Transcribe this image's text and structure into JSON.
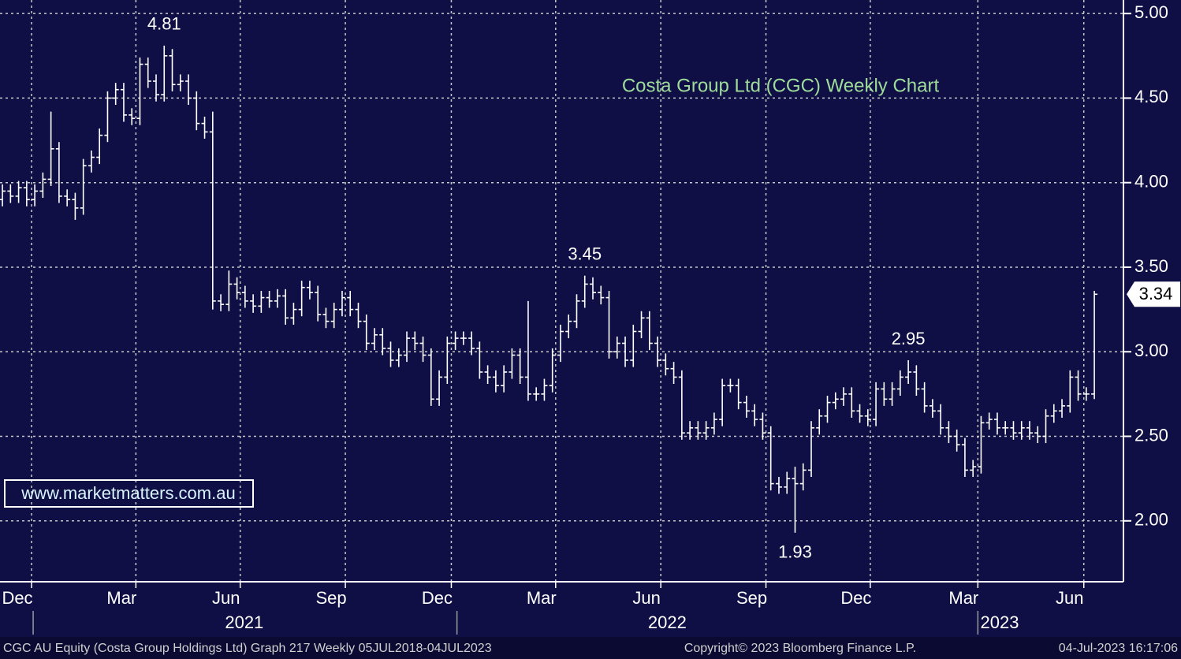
{
  "chart_data": {
    "type": "ohlc",
    "title": "Costa Group Ltd (CGC) Weekly Chart",
    "color": "#ffffff",
    "grid": true,
    "open": [
      3.9,
      3.95,
      3.92,
      3.97,
      3.9,
      3.95,
      4.02,
      4.2,
      3.92,
      3.9,
      3.85,
      4.1,
      4.15,
      4.28,
      4.5,
      4.55,
      4.4,
      4.38,
      4.7,
      4.6,
      4.52,
      4.75,
      4.58,
      4.6,
      4.5,
      4.35,
      4.3,
      3.3,
      3.28,
      3.4,
      3.35,
      3.3,
      3.27,
      3.32,
      3.3,
      3.33,
      3.2,
      3.25,
      3.38,
      3.35,
      3.22,
      3.18,
      3.25,
      3.32,
      3.25,
      3.18,
      3.05,
      3.1,
      3.02,
      2.95,
      2.98,
      3.08,
      3.05,
      2.98,
      2.72,
      2.85,
      3.05,
      3.08,
      3.08,
      3.02,
      2.88,
      2.85,
      2.8,
      2.88,
      2.98,
      2.85,
      2.75,
      2.75,
      2.8,
      2.98,
      3.12,
      3.18,
      3.3,
      3.4,
      3.35,
      3.32,
      3.0,
      3.05,
      2.95,
      3.12,
      3.2,
      3.05,
      2.95,
      2.9,
      2.85,
      2.52,
      2.55,
      2.52,
      2.55,
      2.6,
      2.8,
      2.8,
      2.7,
      2.65,
      2.6,
      2.52,
      2.22,
      2.2,
      2.25,
      2.22,
      2.3,
      2.55,
      2.62,
      2.7,
      2.72,
      2.75,
      2.65,
      2.62,
      2.6,
      2.78,
      2.72,
      2.78,
      2.85,
      2.88,
      2.78,
      2.68,
      2.65,
      2.55,
      2.5,
      2.45,
      2.3,
      2.32,
      2.58,
      2.6,
      2.55,
      2.55,
      2.52,
      2.55,
      2.52,
      2.5,
      2.62,
      2.65,
      2.68,
      2.85,
      2.75,
      2.75
    ],
    "high": [
      3.99,
      3.99,
      4.01,
      4.01,
      3.99,
      4.06,
      4.42,
      4.24,
      3.96,
      3.94,
      4.14,
      4.19,
      4.32,
      4.54,
      4.59,
      4.59,
      4.44,
      4.74,
      4.74,
      4.64,
      4.81,
      4.79,
      4.64,
      4.64,
      4.54,
      4.39,
      4.42,
      3.34,
      3.48,
      3.44,
      3.39,
      3.34,
      3.36,
      3.36,
      3.37,
      3.37,
      3.29,
      3.42,
      3.42,
      3.39,
      3.26,
      3.29,
      3.36,
      3.36,
      3.29,
      3.22,
      3.14,
      3.14,
      3.06,
      3.02,
      3.12,
      3.12,
      3.09,
      3.02,
      2.89,
      3.09,
      3.12,
      3.12,
      3.12,
      3.06,
      2.92,
      2.89,
      2.92,
      3.02,
      3.02,
      3.3,
      2.79,
      2.84,
      3.02,
      3.16,
      3.22,
      3.34,
      3.45,
      3.44,
      3.39,
      3.36,
      3.09,
      3.09,
      3.16,
      3.24,
      3.24,
      3.09,
      2.99,
      2.94,
      2.89,
      2.59,
      2.59,
      2.59,
      2.64,
      2.84,
      2.84,
      2.84,
      2.74,
      2.69,
      2.64,
      2.56,
      2.26,
      2.29,
      2.32,
      2.34,
      2.59,
      2.66,
      2.74,
      2.76,
      2.79,
      2.79,
      2.69,
      2.66,
      2.82,
      2.82,
      2.82,
      2.89,
      2.95,
      2.92,
      2.82,
      2.72,
      2.69,
      2.59,
      2.54,
      2.49,
      2.36,
      2.62,
      2.64,
      2.64,
      2.59,
      2.59,
      2.59,
      2.59,
      2.56,
      2.66,
      2.69,
      2.72,
      2.89,
      2.89,
      2.79,
      3.36
    ],
    "low": [
      3.86,
      3.88,
      3.88,
      3.86,
      3.86,
      3.91,
      3.98,
      3.88,
      3.86,
      3.78,
      3.81,
      4.06,
      4.11,
      4.24,
      4.46,
      4.36,
      4.34,
      4.34,
      4.56,
      4.48,
      4.48,
      4.54,
      4.54,
      4.46,
      4.31,
      4.26,
      3.25,
      3.24,
      3.24,
      3.31,
      3.26,
      3.23,
      3.23,
      3.26,
      3.26,
      3.16,
      3.16,
      3.21,
      3.31,
      3.18,
      3.14,
      3.14,
      3.21,
      3.21,
      3.14,
      3.01,
      3.01,
      2.98,
      2.91,
      2.91,
      2.94,
      3.01,
      2.94,
      2.68,
      2.68,
      2.81,
      3.01,
      3.04,
      2.98,
      2.84,
      2.81,
      2.76,
      2.76,
      2.84,
      2.81,
      2.71,
      2.71,
      2.71,
      2.76,
      2.94,
      3.08,
      3.14,
      3.26,
      3.31,
      3.28,
      2.96,
      2.96,
      2.91,
      2.91,
      3.08,
      3.01,
      2.91,
      2.86,
      2.81,
      2.48,
      2.48,
      2.48,
      2.48,
      2.51,
      2.56,
      2.76,
      2.66,
      2.61,
      2.56,
      2.48,
      2.18,
      2.16,
      2.16,
      1.93,
      2.18,
      2.26,
      2.51,
      2.58,
      2.66,
      2.68,
      2.61,
      2.58,
      2.56,
      2.56,
      2.68,
      2.68,
      2.74,
      2.81,
      2.74,
      2.64,
      2.61,
      2.51,
      2.46,
      2.41,
      2.26,
      2.26,
      2.28,
      2.54,
      2.51,
      2.51,
      2.48,
      2.48,
      2.48,
      2.46,
      2.46,
      2.58,
      2.61,
      2.64,
      2.71,
      2.71,
      2.72
    ],
    "close": [
      3.95,
      3.92,
      3.97,
      3.9,
      3.95,
      4.02,
      4.2,
      3.92,
      3.9,
      3.85,
      4.1,
      4.15,
      4.28,
      4.5,
      4.55,
      4.4,
      4.38,
      4.7,
      4.6,
      4.52,
      4.75,
      4.58,
      4.6,
      4.5,
      4.35,
      4.3,
      3.3,
      3.28,
      3.4,
      3.35,
      3.3,
      3.27,
      3.32,
      3.3,
      3.33,
      3.2,
      3.25,
      3.38,
      3.35,
      3.22,
      3.18,
      3.25,
      3.32,
      3.25,
      3.18,
      3.05,
      3.1,
      3.02,
      2.95,
      2.98,
      3.08,
      3.05,
      2.98,
      2.72,
      2.85,
      3.05,
      3.08,
      3.08,
      3.02,
      2.88,
      2.85,
      2.8,
      2.88,
      2.98,
      2.85,
      2.75,
      2.75,
      2.8,
      2.98,
      3.12,
      3.18,
      3.3,
      3.4,
      3.35,
      3.32,
      3.0,
      3.05,
      2.95,
      3.12,
      3.2,
      3.05,
      2.95,
      2.9,
      2.85,
      2.52,
      2.55,
      2.52,
      2.55,
      2.6,
      2.8,
      2.8,
      2.7,
      2.65,
      2.6,
      2.52,
      2.22,
      2.2,
      2.25,
      2.22,
      2.3,
      2.55,
      2.62,
      2.7,
      2.72,
      2.75,
      2.65,
      2.62,
      2.6,
      2.78,
      2.72,
      2.78,
      2.85,
      2.88,
      2.78,
      2.68,
      2.65,
      2.55,
      2.5,
      2.45,
      2.3,
      2.32,
      2.58,
      2.6,
      2.55,
      2.55,
      2.52,
      2.55,
      2.52,
      2.5,
      2.62,
      2.65,
      2.68,
      2.85,
      2.75,
      2.75,
      3.34
    ],
    "xlim": [
      -0.3,
      138.6
    ],
    "xticks": [
      {
        "value": 3.6,
        "label": "Dec"
      },
      {
        "value": 16.5,
        "label": "Mar"
      },
      {
        "value": 29.4,
        "label": "Jun"
      },
      {
        "value": 42.4,
        "label": "Sep"
      },
      {
        "value": 55.5,
        "label": "Dec"
      },
      {
        "value": 68.4,
        "label": "Mar"
      },
      {
        "value": 81.4,
        "label": "Jun"
      },
      {
        "value": 94.4,
        "label": "Sep"
      },
      {
        "value": 107.3,
        "label": "Dec"
      },
      {
        "value": 120.6,
        "label": "Mar"
      },
      {
        "value": 133.7,
        "label": "Jun"
      }
    ],
    "x2ticks": [
      {
        "value": 29.9,
        "label": "2021"
      },
      {
        "value": 82.2,
        "label": "2022"
      },
      {
        "value": 123.3,
        "label": "2023"
      }
    ],
    "year_dividers": [
      3.8,
      56.2,
      120.6
    ],
    "ylim": [
      1.64,
      5.08
    ],
    "yticks": [
      {
        "value": 2,
        "label": "2.00"
      },
      {
        "value": 2.5,
        "label": "2.50"
      },
      {
        "value": 3,
        "label": "3.00"
      },
      {
        "value": 3.5,
        "label": "3.50"
      },
      {
        "value": 4,
        "label": "4.00"
      },
      {
        "value": 4.5,
        "label": "4.50"
      },
      {
        "value": 5,
        "label": "5.00"
      }
    ],
    "watermark": "www.marketmatters.com.au",
    "footer": {
      "left": "CGC AU Equity (Costa Group Holdings Ltd) Graph 217  Weekly 05JUL2018-04JUL2023",
      "center": "Copyright© 2023 Bloomberg Finance L.P.",
      "right": "04-Jul-2023 16:17:06"
    }
  }
}
